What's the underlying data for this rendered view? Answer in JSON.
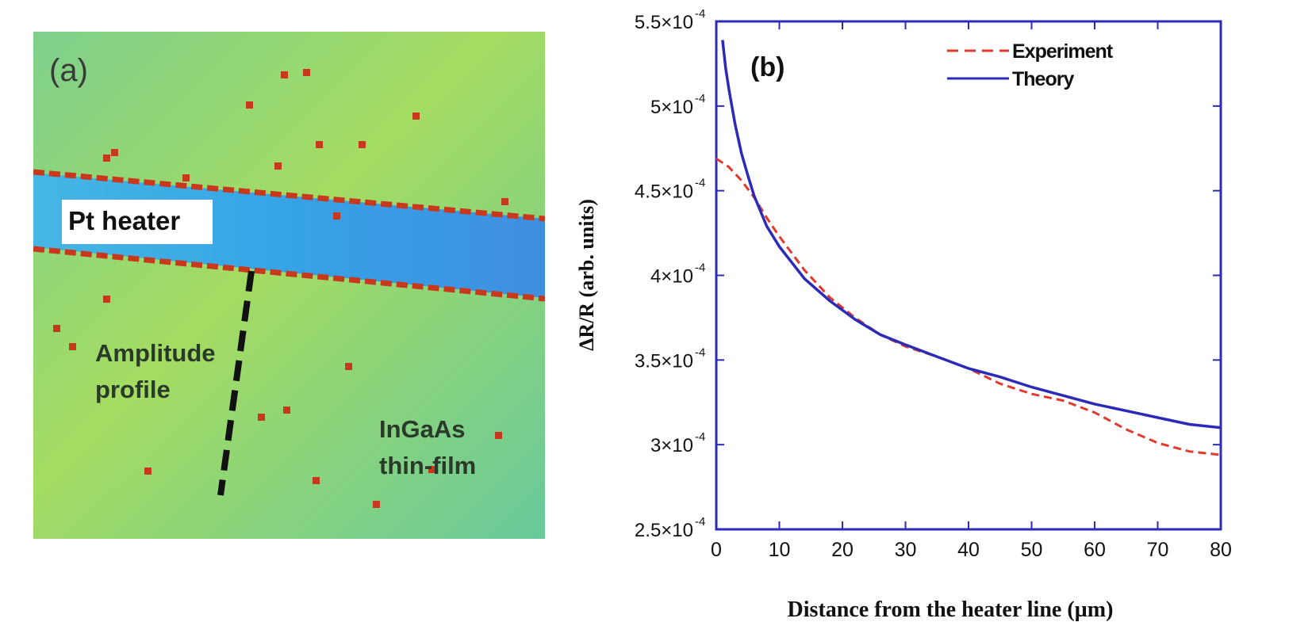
{
  "panel_a": {
    "label": "(a)",
    "pt_heater": "Pt heater",
    "amplitude_line1": "Amplitude",
    "amplitude_line2": "profile",
    "film_line1": "InGaAs",
    "film_line2": "thin-film",
    "colors": {
      "background": "#9ad86a",
      "background_alt": "#62c79a",
      "heater": "#3aa6e6",
      "edge": "#c8381c",
      "dash": "#111111"
    }
  },
  "chart_data": {
    "type": "line",
    "title": "",
    "panel_label": "(b)",
    "xlabel": "Distance from the heater line (µm)",
    "ylabel": "ΔR/R (arb. units)",
    "xlim": [
      0,
      80
    ],
    "ylim": [
      0.00025,
      0.00055
    ],
    "x_ticks": [
      0,
      10,
      20,
      30,
      40,
      50,
      60,
      70,
      80
    ],
    "y_ticks": [
      {
        "value": 0.00025,
        "mantissa": "2.5×10",
        "exp": "-4"
      },
      {
        "value": 0.0003,
        "mantissa": "3×10",
        "exp": "-4"
      },
      {
        "value": 0.00035,
        "mantissa": "3.5×10",
        "exp": "-4"
      },
      {
        "value": 0.0004,
        "mantissa": "4×10",
        "exp": "-4"
      },
      {
        "value": 0.00045,
        "mantissa": "4.5×10",
        "exp": "-4"
      },
      {
        "value": 0.0005,
        "mantissa": "5×10",
        "exp": "-4"
      },
      {
        "value": 0.00055,
        "mantissa": "5.5×10",
        "exp": "-4"
      }
    ],
    "grid": false,
    "legend_position": "top-right",
    "series": [
      {
        "name": "Experiment",
        "color": "#e03a2e",
        "style": "dashed",
        "x": [
          0,
          2,
          4,
          6,
          8,
          10,
          14,
          18,
          22,
          26,
          30,
          35,
          40,
          45,
          50,
          55,
          60,
          65,
          70,
          75,
          80
        ],
        "y": [
          0.000469,
          0.000464,
          0.000456,
          0.000446,
          0.000434,
          0.000423,
          0.000403,
          0.000387,
          0.000375,
          0.000365,
          0.000358,
          0.000352,
          0.000345,
          0.000336,
          0.00033,
          0.000326,
          0.000319,
          0.000309,
          0.000301,
          0.000296,
          0.000294
        ]
      },
      {
        "name": "Theory",
        "color": "#2b2bb8",
        "style": "solid",
        "x": [
          1,
          1.5,
          2,
          3,
          4,
          5,
          6,
          8,
          10,
          14,
          18,
          22,
          26,
          30,
          35,
          40,
          45,
          50,
          55,
          60,
          65,
          70,
          75,
          80
        ],
        "y": [
          0.000539,
          0.000522,
          0.00051,
          0.000489,
          0.000472,
          0.000459,
          0.000447,
          0.000429,
          0.000417,
          0.000398,
          0.000385,
          0.000374,
          0.000365,
          0.000359,
          0.000352,
          0.000345,
          0.00034,
          0.000334,
          0.000329,
          0.000324,
          0.00032,
          0.000316,
          0.000312,
          0.00031
        ]
      }
    ]
  }
}
